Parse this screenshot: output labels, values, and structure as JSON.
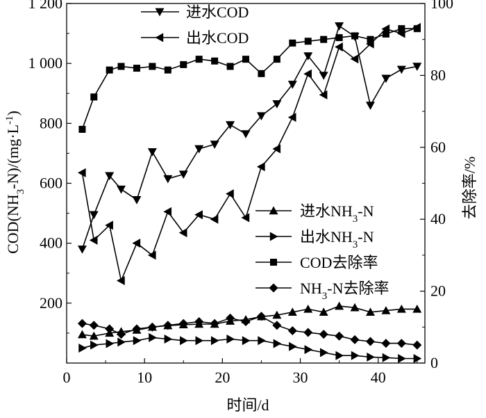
{
  "chart_data": {
    "type": "line",
    "title": "",
    "xlabel": "时间/d",
    "ylabel_left": {
      "main": "COD(NH",
      "sub": "3",
      "mid": "-N)/(mg·L",
      "sup": "-1",
      "end": ")"
    },
    "ylabel_right": "去除率/%",
    "xlim": [
      0,
      46
    ],
    "ylim_left": [
      0,
      1200
    ],
    "ylim_right": [
      0,
      100
    ],
    "x_ticks": [
      "0",
      "10",
      "20",
      "30",
      "40"
    ],
    "y_left_ticks": [
      "200",
      "400",
      "600",
      "800",
      "1 000",
      "1 200"
    ],
    "y_right_ticks": [
      "0",
      "20",
      "40",
      "60",
      "80",
      "100"
    ],
    "legend_top": [
      "进水COD",
      "出水COD"
    ],
    "legend_bottom": [
      {
        "main": "进水NH",
        "sub": "3",
        "end": "-N"
      },
      {
        "main": "出水NH",
        "sub": "3",
        "end": "-N"
      },
      {
        "main": "COD去除率",
        "sub": "",
        "end": ""
      },
      {
        "main": "NH",
        "sub": "3",
        "end": "-N去除率"
      }
    ],
    "series": [
      {
        "name": "进水COD",
        "axis": "left",
        "marker": "triangle-down",
        "x": [
          2,
          3.5,
          5.5,
          7,
          9,
          11,
          13,
          15,
          17,
          19,
          21,
          23,
          25,
          27,
          29,
          31,
          33,
          35,
          37,
          39,
          41,
          43,
          45
        ],
        "y": [
          380,
          495,
          625,
          580,
          545,
          705,
          615,
          630,
          715,
          730,
          795,
          765,
          825,
          865,
          930,
          1025,
          960,
          1125,
          1090,
          860,
          950,
          980,
          990
        ]
      },
      {
        "name": "出水COD",
        "axis": "left",
        "marker": "triangle-left",
        "x": [
          2,
          3.5,
          5.5,
          7,
          9,
          11,
          13,
          15,
          17,
          19,
          21,
          23,
          25,
          27,
          29,
          31,
          33,
          35,
          37,
          39,
          41,
          43,
          45
        ],
        "y": [
          635,
          410,
          460,
          275,
          400,
          360,
          505,
          435,
          495,
          480,
          565,
          485,
          655,
          715,
          820,
          965,
          895,
          1055,
          1015,
          1065,
          1115,
          1100,
          1120
        ]
      },
      {
        "name": "进水NH3-N",
        "axis": "left",
        "marker": "triangle-up",
        "x": [
          2,
          3.5,
          5.5,
          7,
          9,
          11,
          13,
          15,
          17,
          19,
          21,
          23,
          25,
          27,
          29,
          31,
          33,
          35,
          37,
          39,
          41,
          43,
          45
        ],
        "y": [
          95,
          90,
          100,
          105,
          110,
          120,
          125,
          128,
          130,
          130,
          140,
          145,
          155,
          160,
          170,
          180,
          170,
          190,
          185,
          170,
          175,
          180,
          180
        ]
      },
      {
        "name": "出水NH3-N",
        "axis": "left",
        "marker": "triangle-right",
        "x": [
          2,
          3.5,
          5.5,
          7,
          9,
          11,
          13,
          15,
          17,
          19,
          21,
          23,
          25,
          27,
          29,
          31,
          33,
          35,
          37,
          39,
          41,
          43,
          45
        ],
        "y": [
          50,
          60,
          65,
          70,
          75,
          85,
          80,
          75,
          75,
          75,
          80,
          75,
          75,
          65,
          55,
          45,
          35,
          25,
          25,
          20,
          18,
          15,
          15
        ]
      },
      {
        "name": "COD去除率",
        "axis": "right",
        "marker": "square",
        "x": [
          2,
          3.5,
          5.5,
          7,
          9,
          11,
          13,
          15,
          17,
          19,
          21,
          23,
          25,
          27,
          29,
          31,
          33,
          35,
          37,
          39,
          41,
          43,
          45
        ],
        "y": [
          65,
          74,
          81.5,
          82.5,
          82,
          82.5,
          81.5,
          83,
          84.5,
          84,
          82.5,
          84.5,
          80.5,
          84.5,
          89,
          89.5,
          90,
          90.5,
          91,
          90,
          91.5,
          93,
          93
        ]
      },
      {
        "name": "NH3-N去除率",
        "axis": "right",
        "marker": "diamond",
        "x": [
          2,
          3.5,
          5.5,
          7,
          9,
          11,
          13,
          15,
          17,
          19,
          21,
          23,
          25,
          27,
          29,
          31,
          33,
          35,
          37,
          39,
          41,
          43,
          45
        ],
        "y": [
          11,
          10.5,
          9.5,
          8,
          9.5,
          10,
          10.5,
          11,
          11.5,
          11,
          12.5,
          11.5,
          13,
          10.5,
          9,
          8.5,
          8,
          7.5,
          6.5,
          6,
          5.5,
          5.5,
          5
        ]
      }
    ]
  }
}
